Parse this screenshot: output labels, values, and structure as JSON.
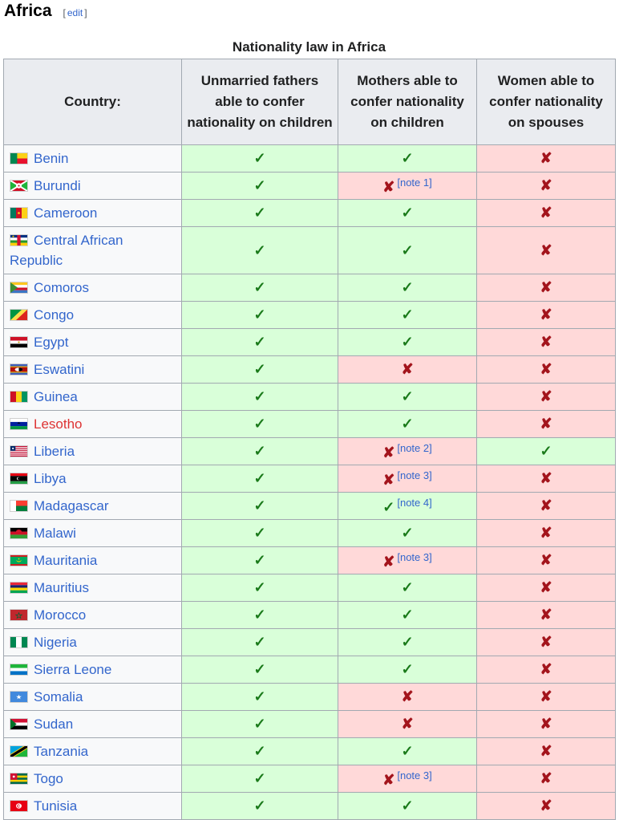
{
  "section": {
    "title": "Africa",
    "edit_link": "edit"
  },
  "table": {
    "caption": "Nationality law in Africa",
    "headers": [
      "Country:",
      "Unmarried fathers able to confer nationality on children",
      "Mothers able to confer nationality on children",
      "Women able to confer nationality on spouses"
    ],
    "symbols": {
      "yes": "✓",
      "no": "✘"
    },
    "colors": {
      "yes_bg": "#d9ffd9",
      "no_bg": "#ffd9d9",
      "yes_mark": "#1a7a1a",
      "no_mark": "#a3141c",
      "link": "#3366cc",
      "redlink": "#d33"
    },
    "rows": [
      {
        "country": "Benin",
        "flag": "benin",
        "fathers": "yes",
        "mothers": "yes",
        "spouses": "no"
      },
      {
        "country": "Burundi",
        "flag": "burundi",
        "fathers": "yes",
        "mothers": "no",
        "mothers_note": "[note 1]",
        "spouses": "no"
      },
      {
        "country": "Cameroon",
        "flag": "cameroon",
        "fathers": "yes",
        "mothers": "yes",
        "spouses": "no"
      },
      {
        "country": "Central African Republic",
        "flag": "car",
        "fathers": "yes",
        "mothers": "yes",
        "spouses": "no"
      },
      {
        "country": "Comoros",
        "flag": "comoros",
        "fathers": "yes",
        "mothers": "yes",
        "spouses": "no"
      },
      {
        "country": "Congo",
        "flag": "congo",
        "fathers": "yes",
        "mothers": "yes",
        "spouses": "no"
      },
      {
        "country": "Egypt",
        "flag": "egypt",
        "fathers": "yes",
        "mothers": "yes",
        "spouses": "no"
      },
      {
        "country": "Eswatini",
        "flag": "eswatini",
        "fathers": "yes",
        "mothers": "no",
        "spouses": "no"
      },
      {
        "country": "Guinea",
        "flag": "guinea",
        "fathers": "yes",
        "mothers": "yes",
        "spouses": "no"
      },
      {
        "country": "Lesotho",
        "flag": "lesotho",
        "redlink": true,
        "fathers": "yes",
        "mothers": "yes",
        "spouses": "no"
      },
      {
        "country": "Liberia",
        "flag": "liberia",
        "fathers": "yes",
        "mothers": "no",
        "mothers_note": "[note 2]",
        "spouses": "yes"
      },
      {
        "country": "Libya",
        "flag": "libya",
        "fathers": "yes",
        "mothers": "no",
        "mothers_note": "[note 3]",
        "spouses": "no"
      },
      {
        "country": "Madagascar",
        "flag": "madagascar",
        "fathers": "yes",
        "mothers": "yes",
        "mothers_note": "[note 4]",
        "spouses": "no"
      },
      {
        "country": "Malawi",
        "flag": "malawi",
        "fathers": "yes",
        "mothers": "yes",
        "spouses": "no"
      },
      {
        "country": "Mauritania",
        "flag": "mauritania",
        "fathers": "yes",
        "mothers": "no",
        "mothers_note": "[note 3]",
        "spouses": "no"
      },
      {
        "country": "Mauritius",
        "flag": "mauritius",
        "fathers": "yes",
        "mothers": "yes",
        "spouses": "no"
      },
      {
        "country": "Morocco",
        "flag": "morocco",
        "fathers": "yes",
        "mothers": "yes",
        "spouses": "no"
      },
      {
        "country": "Nigeria",
        "flag": "nigeria",
        "fathers": "yes",
        "mothers": "yes",
        "spouses": "no"
      },
      {
        "country": "Sierra Leone",
        "flag": "sierraleone",
        "fathers": "yes",
        "mothers": "yes",
        "spouses": "no"
      },
      {
        "country": "Somalia",
        "flag": "somalia",
        "fathers": "yes",
        "mothers": "no",
        "spouses": "no"
      },
      {
        "country": "Sudan",
        "flag": "sudan",
        "fathers": "yes",
        "mothers": "no",
        "spouses": "no"
      },
      {
        "country": "Tanzania",
        "flag": "tanzania",
        "fathers": "yes",
        "mothers": "yes",
        "spouses": "no"
      },
      {
        "country": "Togo",
        "flag": "togo",
        "fathers": "yes",
        "mothers": "no",
        "mothers_note": "[note 3]",
        "spouses": "no"
      },
      {
        "country": "Tunisia",
        "flag": "tunisia",
        "fathers": "yes",
        "mothers": "yes",
        "spouses": "no"
      }
    ]
  }
}
